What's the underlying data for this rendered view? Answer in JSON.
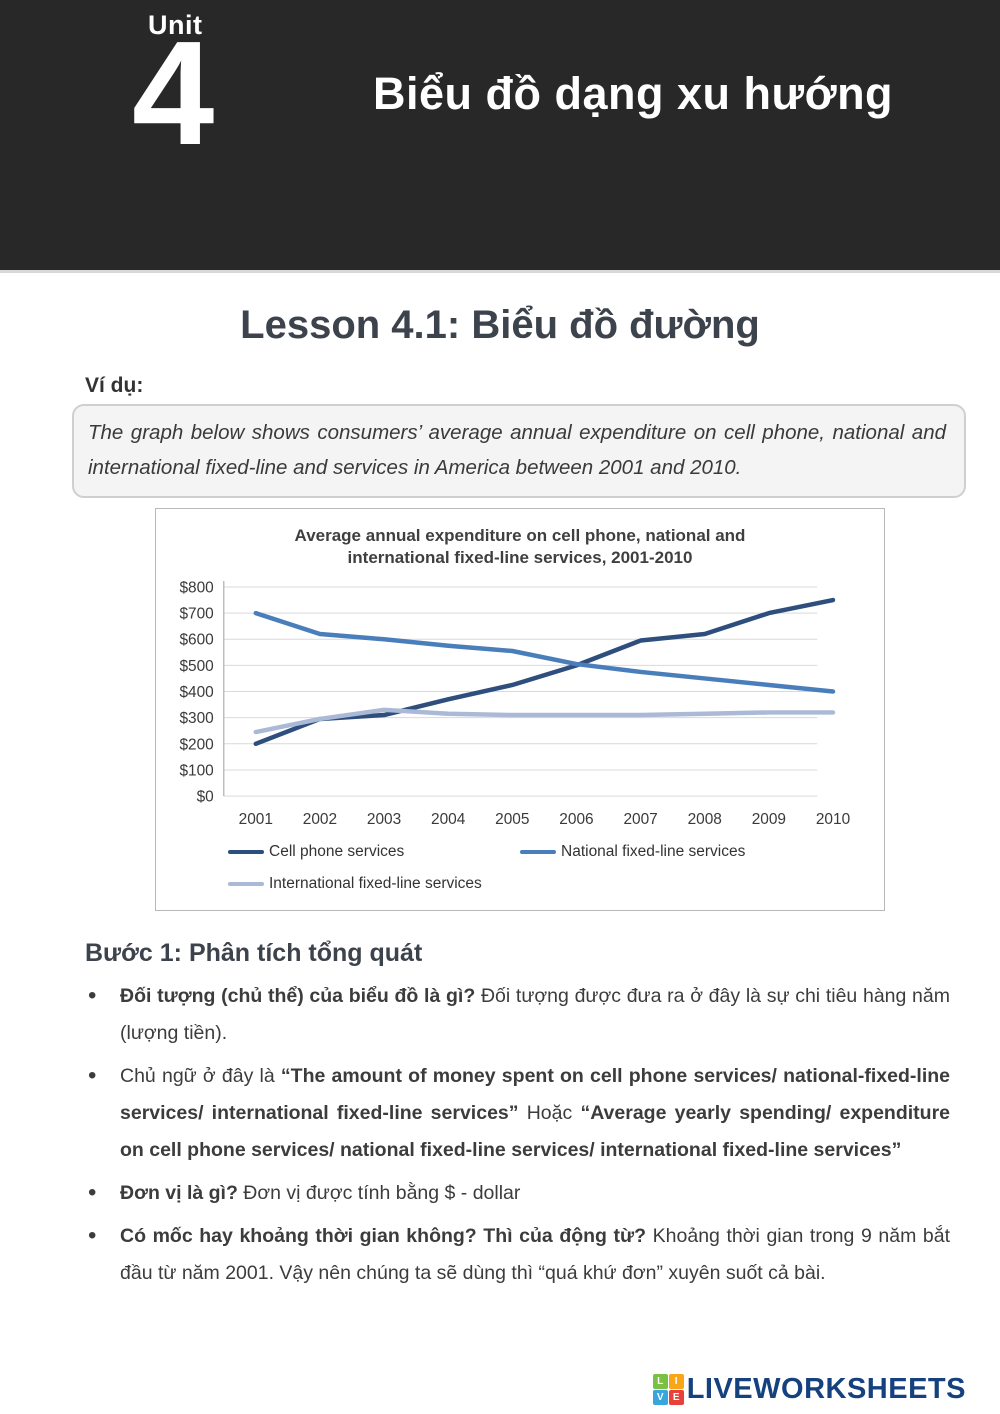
{
  "page": {
    "header": {
      "unit_label": "Unit",
      "unit_number": "4",
      "title": "Biểu đồ dạng xu hướng",
      "background_color": "#282828"
    },
    "lesson_title": "Lesson 4.1: Biểu đồ đường",
    "example_label": "Ví dụ:",
    "example_text": "The graph below shows consumers’ average annual expenditure on cell phone, national and international fixed-line and services in America between 2001 and 2010."
  },
  "chart_data": {
    "type": "line",
    "title": "Average annual expenditure on cell phone, national and international fixed-line services, 2001-2010",
    "x": [
      2001,
      2002,
      2003,
      2004,
      2005,
      2006,
      2007,
      2008,
      2009,
      2010
    ],
    "series": [
      {
        "name": "Cell phone services",
        "color": "#2e4e7e",
        "values": [
          200,
          295,
          310,
          370,
          425,
          500,
          595,
          620,
          700,
          750
        ]
      },
      {
        "name": "National fixed-line services",
        "color": "#4a7ebb",
        "values": [
          700,
          620,
          600,
          575,
          555,
          505,
          475,
          450,
          425,
          400
        ]
      },
      {
        "name": "International fixed-line services",
        "color": "#aab9d6",
        "values": [
          245,
          295,
          330,
          315,
          310,
          310,
          310,
          315,
          320,
          320
        ]
      }
    ],
    "ylim": [
      0,
      800
    ],
    "ytick_step": 100,
    "ytick_prefix": "$",
    "xlabel": "",
    "ylabel": "",
    "grid": true,
    "legend_position": "bottom",
    "gridline_color": "#d9d9d9",
    "axis_color": "#bdbdbd"
  },
  "analysis": {
    "heading": "Bước 1: Phân tích tổng quát",
    "bullets": [
      {
        "segments": [
          {
            "text": "Đối tượng (chủ thể) của biểu đồ là gì? ",
            "bold": true
          },
          {
            "text": "Đối tượng được đưa ra ở đây là sự chi tiêu hàng năm (lượng tiền).",
            "bold": false
          }
        ]
      },
      {
        "segments": [
          {
            "text": "Chủ ngữ ở đây là ",
            "bold": false
          },
          {
            "text": "“The amount of money spent on cell phone services/ national-fixed-line services/ international fixed-line services”",
            "bold": true
          },
          {
            "text": " Hoặc ",
            "bold": false
          },
          {
            "text": "“Average yearly spending/ expenditure on cell phone services/ national fixed-line services/ international fixed-line services”",
            "bold": true
          }
        ]
      },
      {
        "segments": [
          {
            "text": "Đơn vị là gì? ",
            "bold": true
          },
          {
            "text": "Đơn vị được tính bằng $ - dollar",
            "bold": false
          }
        ]
      },
      {
        "segments": [
          {
            "text": "Có mốc hay khoảng thời gian không? Thì của động từ? ",
            "bold": true
          },
          {
            "text": "Khoảng thời gian trong 9 năm bắt đầu từ năm 2001. Vậy nên chúng ta sẽ dùng thì “quá khứ đơn” xuyên suốt cả bài.",
            "bold": false
          }
        ]
      }
    ]
  },
  "footer": {
    "brand": "LIVEWORKSHEETS",
    "brand_color": "#16417f",
    "logo_squares": [
      {
        "letter": "L",
        "color": "#7ac143"
      },
      {
        "letter": "I",
        "color": "#f9a51a"
      },
      {
        "letter": "V",
        "color": "#3aa4dc"
      },
      {
        "letter": "E",
        "color": "#e8413a"
      }
    ]
  }
}
